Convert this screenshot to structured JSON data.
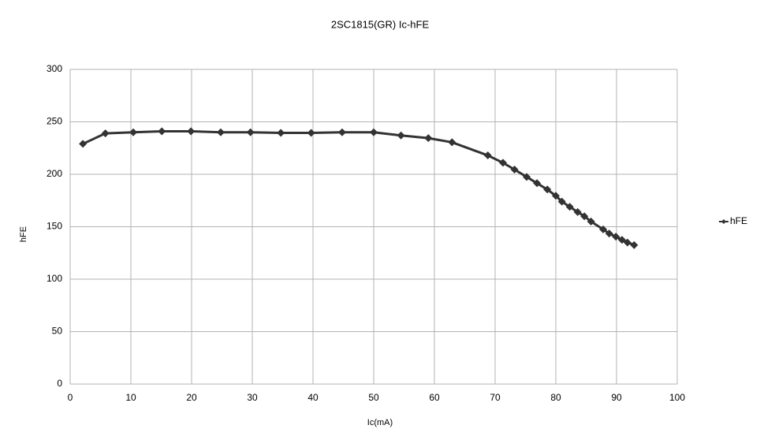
{
  "chart_data": {
    "type": "line",
    "title": "2SC1815(GR) Ic-hFE",
    "xlabel": "Ic(mA)",
    "ylabel": "hFE",
    "x": [
      2.1,
      5.8,
      10.4,
      15.1,
      19.9,
      24.8,
      29.7,
      34.7,
      39.7,
      44.8,
      50.0,
      54.5,
      59.0,
      62.9,
      68.8,
      71.3,
      73.2,
      75.2,
      76.9,
      78.6,
      80.0,
      81.0,
      82.3,
      83.6,
      84.7,
      85.8,
      87.8,
      88.8,
      89.9,
      90.9,
      91.8,
      92.9
    ],
    "series": [
      {
        "name": "hFE",
        "color": "#333333",
        "values": [
          229,
          239,
          240,
          241,
          241,
          240,
          240,
          239.5,
          239.5,
          240,
          240,
          237,
          234.5,
          230.5,
          218,
          211,
          204.5,
          197.5,
          191.5,
          185.5,
          179.5,
          174,
          169,
          164,
          160,
          155,
          147.5,
          143.5,
          140.5,
          137.5,
          135,
          132.5
        ]
      }
    ],
    "xlim": [
      0,
      100
    ],
    "xticks": [
      0,
      10,
      20,
      30,
      40,
      50,
      60,
      70,
      80,
      90,
      100
    ],
    "ylim": [
      0,
      300
    ],
    "yticks": [
      0,
      50,
      100,
      150,
      200,
      250,
      300
    ],
    "grid": true,
    "legend": "right"
  }
}
